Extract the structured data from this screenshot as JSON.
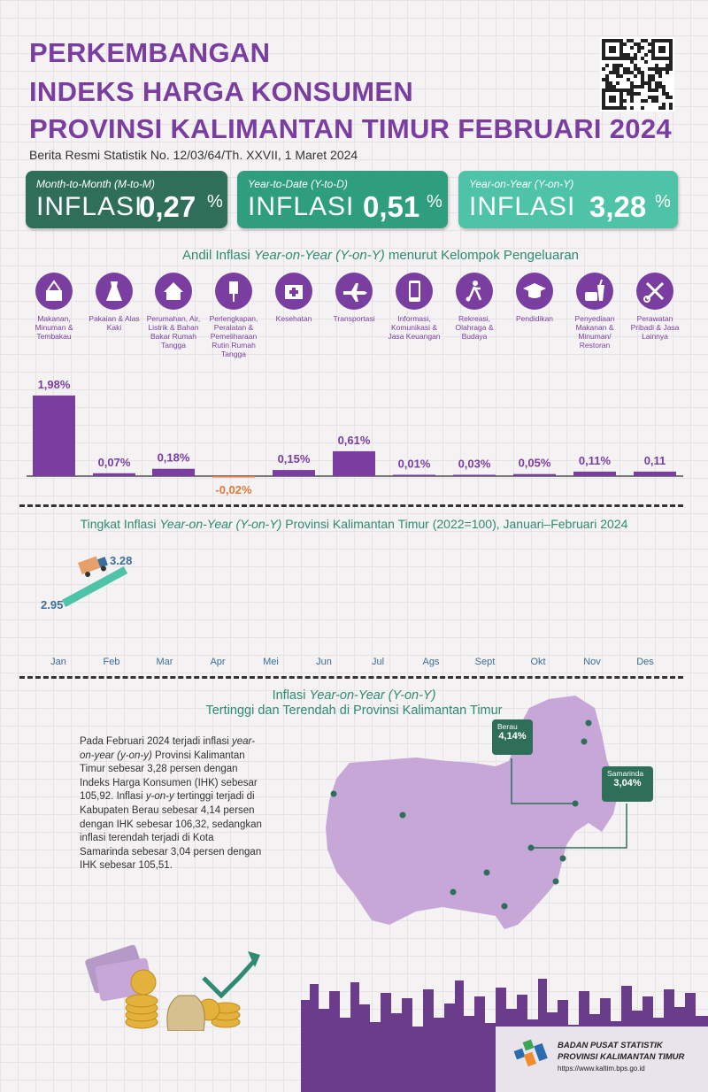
{
  "header": {
    "title_line1": "PERKEMBANGAN",
    "title_line2": "INDEKS HARGA KONSUMEN",
    "title_line3": "PROVINSI KALIMANTAN TIMUR FEBRUARI 2024",
    "subtitle": "Berita Resmi Statistik No. 12/03/64/Th. XXVII, 1 Maret 2024"
  },
  "cards": [
    {
      "label": "Month-to-Month (M-to-M)",
      "word": "INFLASI",
      "value": "0,27",
      "unit": "%",
      "color": "#2f6f5a"
    },
    {
      "label": "Year-to-Date (Y-to-D)",
      "word": "INFLASI",
      "value": "0,51",
      "unit": "%",
      "color": "#2f9e7e"
    },
    {
      "label": "Year-on-Year (Y-on-Y)",
      "word": "INFLASI",
      "value": "3,28",
      "unit": "%",
      "color": "#4fc3a8"
    }
  ],
  "andil": {
    "title_pre": "Andil Inflasi ",
    "title_em": "Year-on-Year (Y-on-Y)",
    "title_post": " menurut Kelompok Pengeluaran",
    "categories": [
      {
        "name": "Makanan, Minuman & Tembakau",
        "icon": "food-basket-icon"
      },
      {
        "name": "Pakaian & Alas Kaki",
        "icon": "dress-icon"
      },
      {
        "name": "Perumahan, Air, Listrik & Bahan Bakar Rumah Tangga",
        "icon": "house-icon"
      },
      {
        "name": "Perlengkapan, Peralatan & Pemeliharaan Rutin Rumah Tangga",
        "icon": "plug-icon"
      },
      {
        "name": "Kesehatan",
        "icon": "medical-kit-icon"
      },
      {
        "name": "Transportasi",
        "icon": "airplane-icon"
      },
      {
        "name": "Informasi, Komunikasi & Jasa Keuangan",
        "icon": "phone-icon"
      },
      {
        "name": "Rekreasi, Olahraga & Budaya",
        "icon": "soccer-player-icon"
      },
      {
        "name": "Pendidikan",
        "icon": "graduation-cap-icon"
      },
      {
        "name": "Penyediaan Makanan & Minuman/ Restoran",
        "icon": "fast-food-icon"
      },
      {
        "name": "Perawatan Pribadi & Jasa Lainnya",
        "icon": "scissors-comb-icon"
      }
    ]
  },
  "chart_data": [
    {
      "type": "bar",
      "categories": [
        "Makanan, Minuman & Tembakau",
        "Pakaian & Alas Kaki",
        "Perumahan, Air, Listrik & Bahan Bakar Rumah Tangga",
        "Perlengkapan, Peralatan & Pemeliharaan Rutin Rumah Tangga",
        "Kesehatan",
        "Transportasi",
        "Informasi, Komunikasi & Jasa Keuangan",
        "Rekreasi, Olahraga & Budaya",
        "Pendidikan",
        "Penyediaan Makanan & Minuman/ Restoran",
        "Perawatan Pribadi & Jasa Lainnya"
      ],
      "values": [
        1.98,
        0.07,
        0.18,
        -0.02,
        0.15,
        0.61,
        0.01,
        0.03,
        0.05,
        0.11,
        0.11
      ],
      "labels": [
        "1,98%",
        "0,07%",
        "0,18%",
        "-0,02%",
        "0,15%",
        "0,61%",
        "0,01%",
        "0,03%",
        "0,05%",
        "0,11%",
        "0,11"
      ],
      "positive_color": "#7a3ea0",
      "negative_color": "#e07a3a"
    },
    {
      "type": "line",
      "title_pre": "Tingkat Inflasi ",
      "title_em": "Year-on-Year (Y-on-Y)",
      "title_post": " Provinsi Kalimantan Timur (2022=100), Januari–Februari 2024",
      "x": [
        "Jan",
        "Feb",
        "Mar",
        "Apr",
        "Mei",
        "Jun",
        "Jul",
        "Ags",
        "Sept",
        "Okt",
        "Nov",
        "Des"
      ],
      "values": [
        2.95,
        3.28
      ],
      "labels": [
        "2.95",
        "3.28"
      ],
      "line_color": "#4fc3a8"
    }
  ],
  "map": {
    "title_pre": "Inflasi ",
    "title_em": "Year-on-Year (Y-on-Y)",
    "title_line2": "Tertinggi dan Terendah di Provinsi Kalimantan Timur",
    "paragraph_parts": [
      "Pada Februari 2024 terjadi inflasi ",
      "year-on-year (y-on-y)",
      " Provinsi Kalimantan Timur sebesar 3,28 persen dengan Indeks Harga Konsumen (IHK) sebesar 105,92. Inflasi ",
      "y-on-y",
      " tertinggi terjadi di Kabupaten Berau sebesar 4,14 persen dengan IHK sebesar 106,32, sedangkan inflasi terendah terjadi di Kota Samarinda sebesar 3,04 persen dengan IHK sebesar 105,51."
    ],
    "callouts": [
      {
        "city": "Berau",
        "value": "4,14%"
      },
      {
        "city": "Samarinda",
        "value": "3,04%"
      }
    ]
  },
  "footer": {
    "org_line1": "BADAN PUSAT STATISTIK",
    "org_line2": "PROVINSI KALIMANTAN TIMUR",
    "url": "https://www.kaltim.bps.go.id"
  }
}
